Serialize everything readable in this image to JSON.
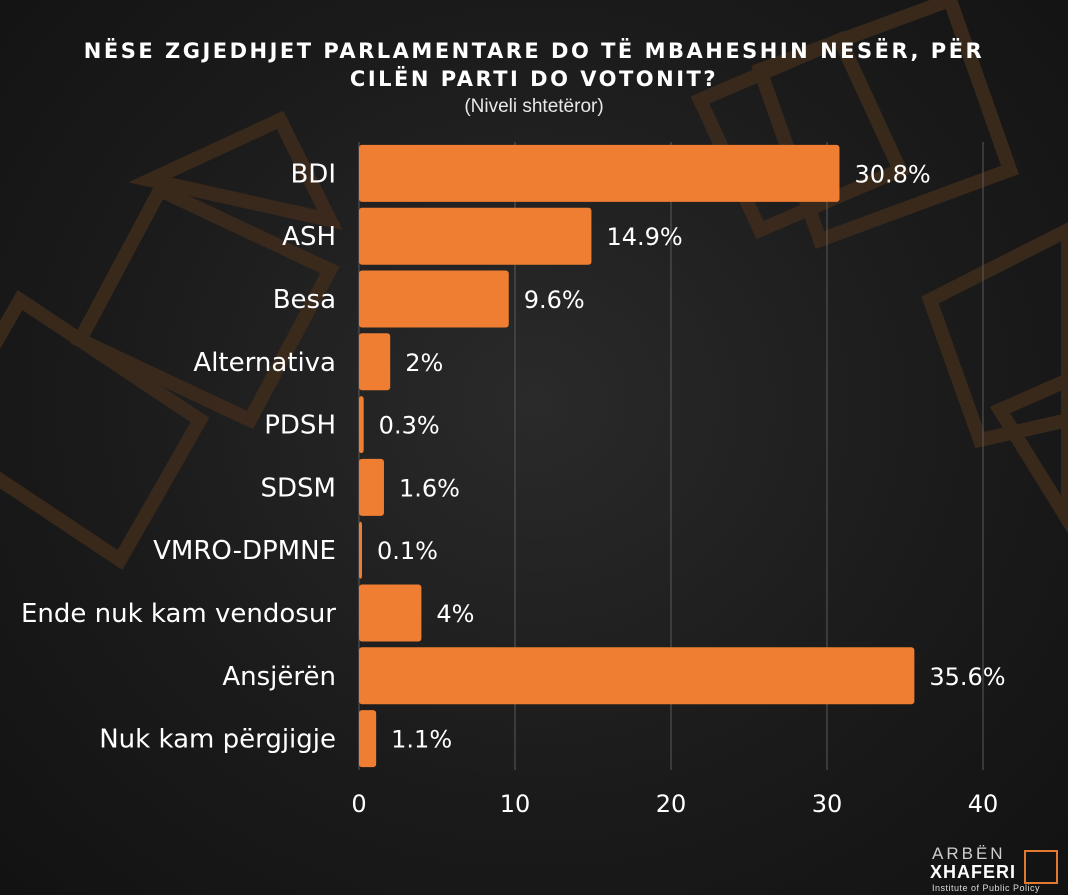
{
  "colors": {
    "bar": "#ef7e32",
    "text": "#ffffff",
    "grid": "#5a5a5a",
    "decor": "#4a3320"
  },
  "title_line1": "NËSE ZGJEDHJET PARLAMENTARE DO TË MBAHESHIN NESËR, PËR",
  "title_line2": "CILËN PARTI DO VOTONIT?",
  "subtitle": "(Niveli shtetëror)",
  "logo": {
    "line1": "ARBËN",
    "line2": "XHAFERI",
    "line3": "Institute of Public Policy"
  },
  "chart_data": {
    "type": "bar",
    "orientation": "horizontal",
    "categories": [
      "BDI",
      "ASH",
      "Besa",
      "Alternativa",
      "PDSH",
      "SDSM",
      "VMRO-DPMNE",
      "Ende nuk kam vendosur",
      "Ansjërën",
      "Nuk kam përgjigje"
    ],
    "values": [
      30.8,
      14.9,
      9.6,
      2,
      0.3,
      1.6,
      0.1,
      4,
      35.6,
      1.1
    ],
    "value_labels": [
      "30.8%",
      "14.9%",
      "9.6%",
      "2%",
      "0.3%",
      "1.6%",
      "0.1%",
      "4%",
      "35.6%",
      "1.1%"
    ],
    "xlim": [
      0,
      40
    ],
    "xticks": [
      "0",
      "10",
      "20",
      "30",
      "40"
    ],
    "grid": true
  }
}
